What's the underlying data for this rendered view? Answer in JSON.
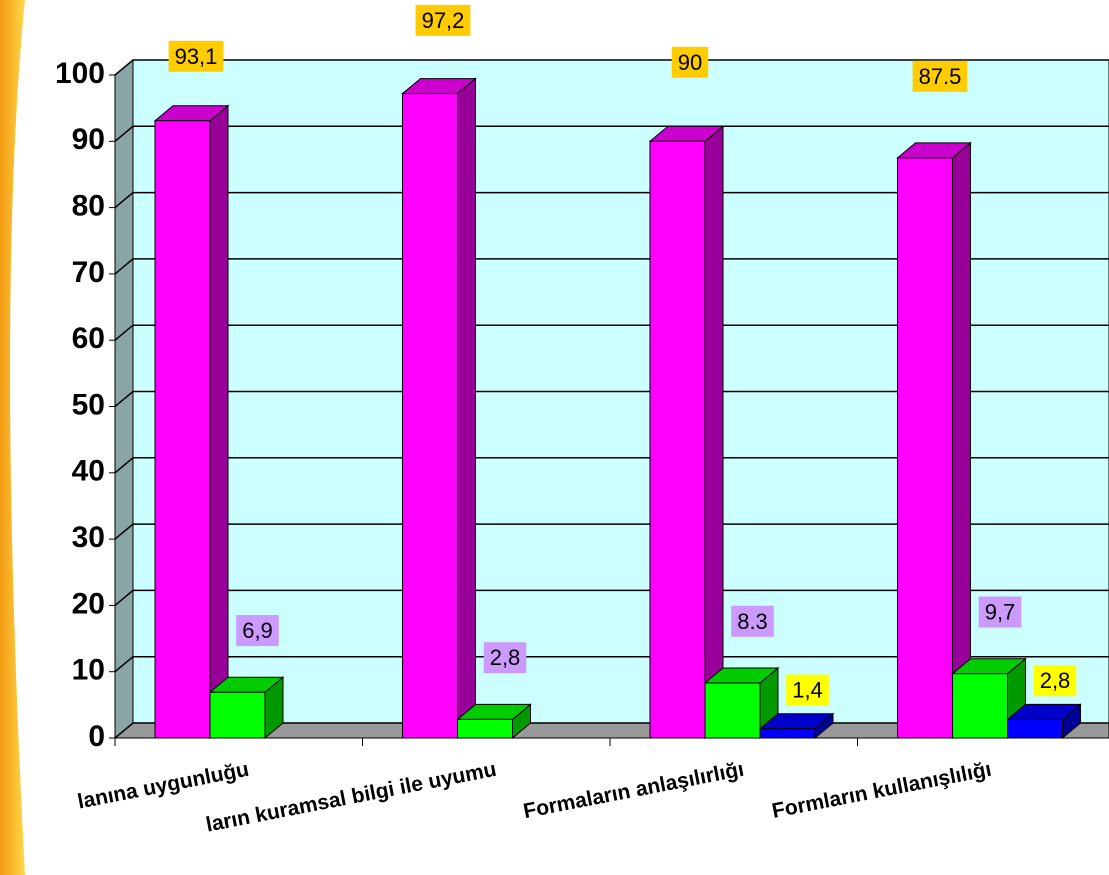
{
  "chart_data": {
    "type": "bar3d",
    "categories": [
      "lanına uygunluğu",
      "ların kuramsal bilgi ile uyumu",
      "Formaların anlaşılırlığı",
      "Formların kullanışlılığı"
    ],
    "series": [
      {
        "color": "#ff00ff",
        "values": [
          93.1,
          97.2,
          90,
          87.5
        ],
        "value_labels": [
          "93,1",
          "97,2",
          "90",
          "87.5"
        ]
      },
      {
        "color": "#00ff00",
        "values": [
          6.9,
          2.8,
          8.3,
          9.7
        ],
        "value_labels": [
          "6,9",
          "2,8",
          "8.3",
          "9,7"
        ]
      },
      {
        "color": "#0000ff",
        "values": [
          null,
          null,
          1.4,
          2.8
        ],
        "value_labels": [
          null,
          null,
          "1,4",
          "2,8"
        ]
      }
    ],
    "ylim": [
      0,
      100
    ],
    "yticks": [
      0,
      10,
      20,
      30,
      40,
      50,
      60,
      70,
      80,
      90,
      100
    ],
    "grid": true
  }
}
